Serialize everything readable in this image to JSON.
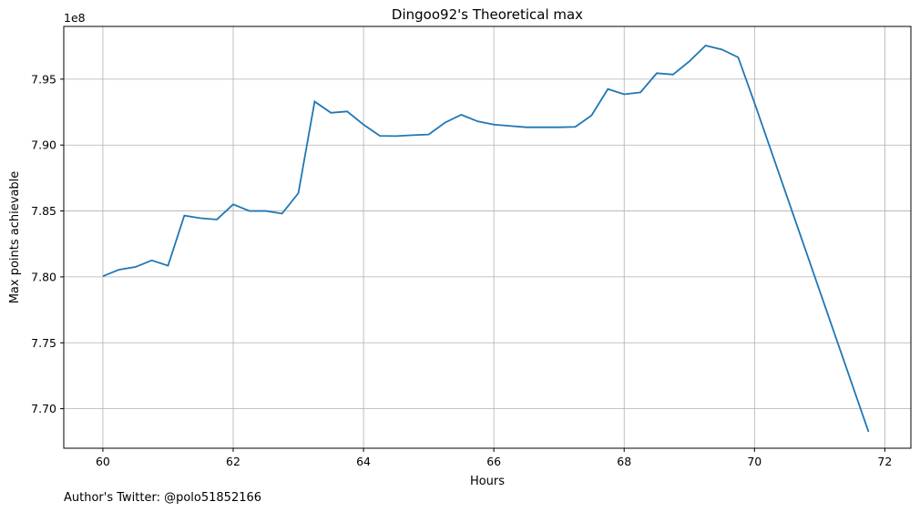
{
  "chart_data": {
    "type": "line",
    "title": "Dingoo92's Theoretical max",
    "xlabel": "Hours",
    "ylabel": "Max points achievable",
    "y_offset_label": "1e8",
    "y_scale": 100000000,
    "xlim": [
      59.4,
      72.4
    ],
    "ylim": [
      7.67,
      7.99
    ],
    "x_ticks": [
      60,
      62,
      64,
      66,
      68,
      70,
      72
    ],
    "x_tick_labels": [
      "60",
      "62",
      "64",
      "66",
      "68",
      "70",
      "72"
    ],
    "y_ticks": [
      7.7,
      7.75,
      7.8,
      7.85,
      7.9,
      7.95
    ],
    "y_tick_labels": [
      "7.70",
      "7.75",
      "7.80",
      "7.85",
      "7.90",
      "7.95"
    ],
    "grid": true,
    "line_color": "#1f77b4",
    "series": [
      {
        "x": [
          60.0,
          60.25,
          60.5,
          60.75,
          61.0,
          61.25,
          61.5,
          61.75,
          62.0,
          62.25,
          62.5,
          62.75,
          63.0,
          63.25,
          63.5,
          63.75,
          64.0,
          64.25,
          64.5,
          64.75,
          65.0,
          65.25,
          65.5,
          65.75,
          66.0,
          66.25,
          66.5,
          66.75,
          67.0,
          67.25,
          67.5,
          67.75,
          68.0,
          68.25,
          68.5,
          68.75,
          69.0,
          69.25,
          69.5,
          69.75,
          70.0,
          71.75
        ],
        "y": [
          7.8005,
          7.8055,
          7.8075,
          7.8125,
          7.8085,
          7.8465,
          7.8445,
          7.8435,
          7.855,
          7.85,
          7.85,
          7.848,
          7.8635,
          7.933,
          7.9245,
          7.9255,
          7.9155,
          7.907,
          7.9068,
          7.9075,
          7.908,
          7.917,
          7.923,
          7.918,
          7.9155,
          7.9145,
          7.9135,
          7.9135,
          7.9135,
          7.9138,
          7.9225,
          7.9425,
          7.9385,
          7.94,
          7.9545,
          7.9535,
          7.9635,
          7.9755,
          7.9725,
          7.9665,
          7.932,
          7.6825
        ]
      }
    ]
  },
  "footer": {
    "credit": "Author's Twitter: @polo51852166"
  }
}
